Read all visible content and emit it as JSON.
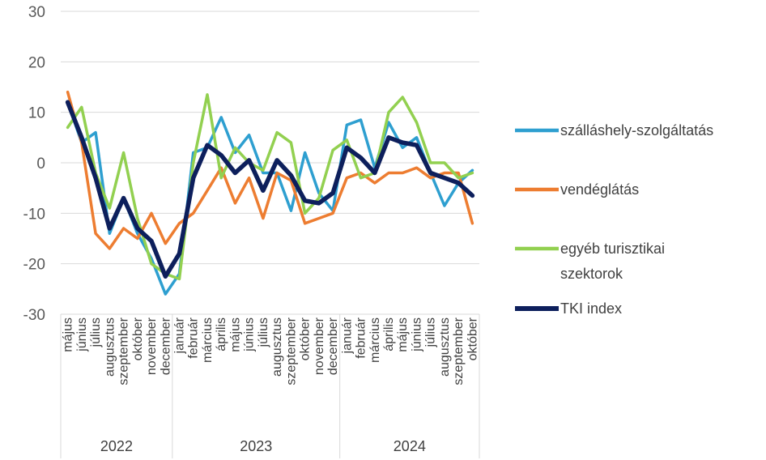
{
  "chart_data": {
    "type": "line",
    "ylim": [
      -30,
      30
    ],
    "y_ticks": [
      "30",
      "20",
      "10",
      "0",
      "-10",
      "-20",
      "-30"
    ],
    "grid": true,
    "legend_position": "right",
    "categories": [
      "május",
      "június",
      "július",
      "augusztus",
      "szeptember",
      "október",
      "november",
      "december",
      "január",
      "február",
      "március",
      "április",
      "május",
      "június",
      "július",
      "augusztus",
      "szeptember",
      "október",
      "november",
      "december",
      "január",
      "február",
      "március",
      "április",
      "május",
      "június",
      "július",
      "augusztus",
      "szeptember",
      "október"
    ],
    "years": [
      {
        "label": "2022",
        "start": 0,
        "end": 7
      },
      {
        "label": "2023",
        "start": 8,
        "end": 19
      },
      {
        "label": "2024",
        "start": 20,
        "end": 29
      }
    ],
    "series": [
      {
        "name": "szálláshely-szolgáltatás",
        "color": "#2E9FD0",
        "width": 3.5,
        "values": [
          12,
          4,
          6,
          -14,
          -7,
          -14,
          -19,
          -26,
          -22,
          2,
          3,
          9,
          2,
          5.5,
          -2,
          -2,
          -9.5,
          2,
          -6,
          -9.5,
          7.5,
          8.5,
          -1,
          8,
          3,
          5,
          -2,
          -8.5,
          -4,
          -1.5
        ]
      },
      {
        "name": "vendéglátás",
        "color": "#ED7D31",
        "width": 3.5,
        "values": [
          14,
          4,
          -14,
          -17,
          -13,
          -15,
          -10,
          -16,
          -12,
          -10,
          -5.5,
          -1,
          -8,
          -3,
          -11,
          -2,
          -3.5,
          -12,
          -11,
          -10,
          -3,
          -2,
          -4,
          -2,
          -2,
          -1,
          -3,
          -2,
          -2,
          -12
        ]
      },
      {
        "name": "egyéb turisztikai\nszektorok",
        "color": "#92D050",
        "width": 3.5,
        "values": [
          7,
          11,
          -2,
          -9,
          2,
          -11,
          -20,
          -22,
          -23,
          0,
          13.5,
          -3,
          3,
          0,
          -1.5,
          6,
          4,
          -10,
          -7,
          2.5,
          4.5,
          -3,
          -2,
          10,
          13,
          8,
          0,
          0,
          -3,
          -2
        ]
      },
      {
        "name": "TKI index",
        "color": "#0D1F5C",
        "width": 5.5,
        "values": [
          12,
          5,
          -3,
          -13,
          -7,
          -13,
          -15.5,
          -22.5,
          -18,
          -3,
          3.5,
          1.5,
          -2,
          0.5,
          -5.5,
          0.5,
          -2.5,
          -7.5,
          -8,
          -6,
          3,
          1,
          -2,
          5,
          4,
          3.5,
          -2,
          -3,
          -4,
          -6.5
        ]
      }
    ]
  }
}
